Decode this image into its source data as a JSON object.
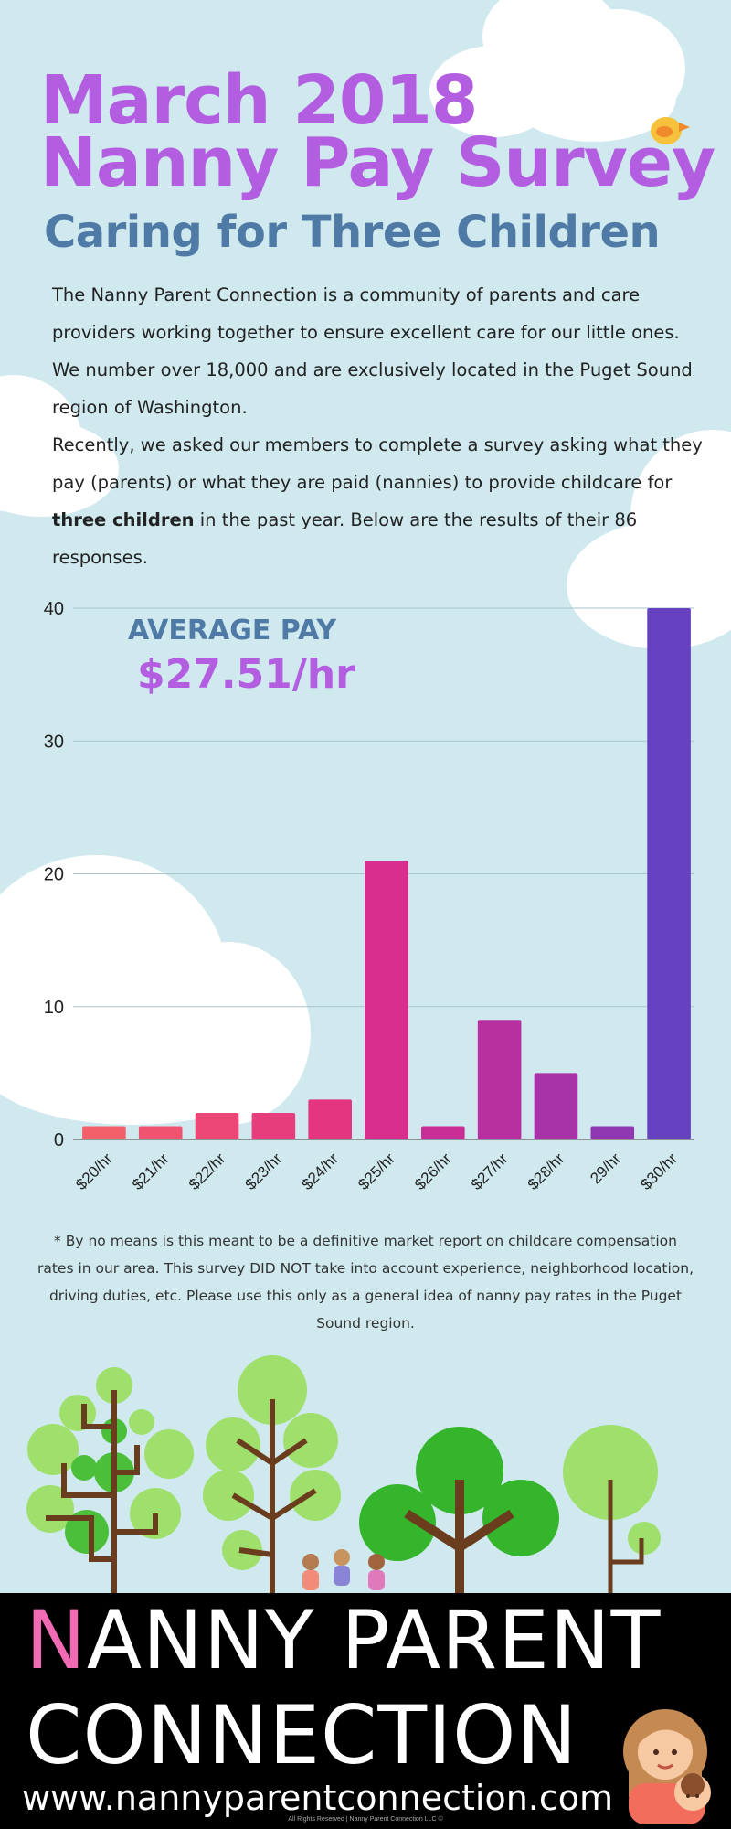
{
  "header": {
    "title_line1": "March 2018",
    "title_line2": "Nanny Pay Survey",
    "subtitle": "Caring for Three Children"
  },
  "intro": {
    "paragraph1": "The Nanny Parent Connection is a community of parents and care providers working together to ensure excellent care for our little ones. We number over 18,000 and are exclusively located in the Puget Sound region of Washington.",
    "paragraph2_before": "Recently, we asked our members to complete a survey asking what they pay (parents) or what they are paid (nannies) to provide childcare for ",
    "paragraph2_bold": "three children",
    "paragraph2_after": " in the past year. Below are the results of their 86 responses."
  },
  "average": {
    "label": "AVERAGE PAY",
    "value": "$27.51/hr"
  },
  "chart_data": {
    "type": "bar",
    "categories": [
      "$20/hr",
      "$21/hr",
      "$22/hr",
      "$23/hr",
      "$24/hr",
      "$25/hr",
      "$26/hr",
      "$27/hr",
      "$28/hr",
      "29/hr",
      "$30/hr"
    ],
    "values": [
      1,
      1,
      2,
      2,
      3,
      21,
      1,
      9,
      5,
      1,
      40
    ],
    "colors": [
      "#f4606a",
      "#f0536f",
      "#ec4677",
      "#e83d7c",
      "#e3367f",
      "#d92e8d",
      "#c92d96",
      "#b830a0",
      "#a833a8",
      "#8f38b2",
      "#6540bf"
    ],
    "yticks": [
      0,
      10,
      20,
      30,
      40
    ],
    "ylim": [
      0,
      40
    ],
    "grid": true,
    "title": "",
    "xlabel": "",
    "ylabel": ""
  },
  "footnote": "* By no means is this meant to be a definitive market report on childcare compensation rates in our area. This survey DID NOT take into account experience, neighborhood location, driving duties, etc. Please use this only as a general idea of nanny pay rates in the Puget Sound region.",
  "footer": {
    "brand_first_letter": "N",
    "brand_line1_rest": "ANNY PARENT",
    "brand_line2": "CONNECTION",
    "website": "www.nannyparentconnection.com",
    "rights": "All Rights Reserved | Nanny Parent Connection LLC ©"
  },
  "colors": {
    "background": "#cfe9ee",
    "title": "#b35ee0",
    "subtitle": "#4f7aa6",
    "brand_accent": "#f06ab4",
    "footer": "#000000"
  }
}
